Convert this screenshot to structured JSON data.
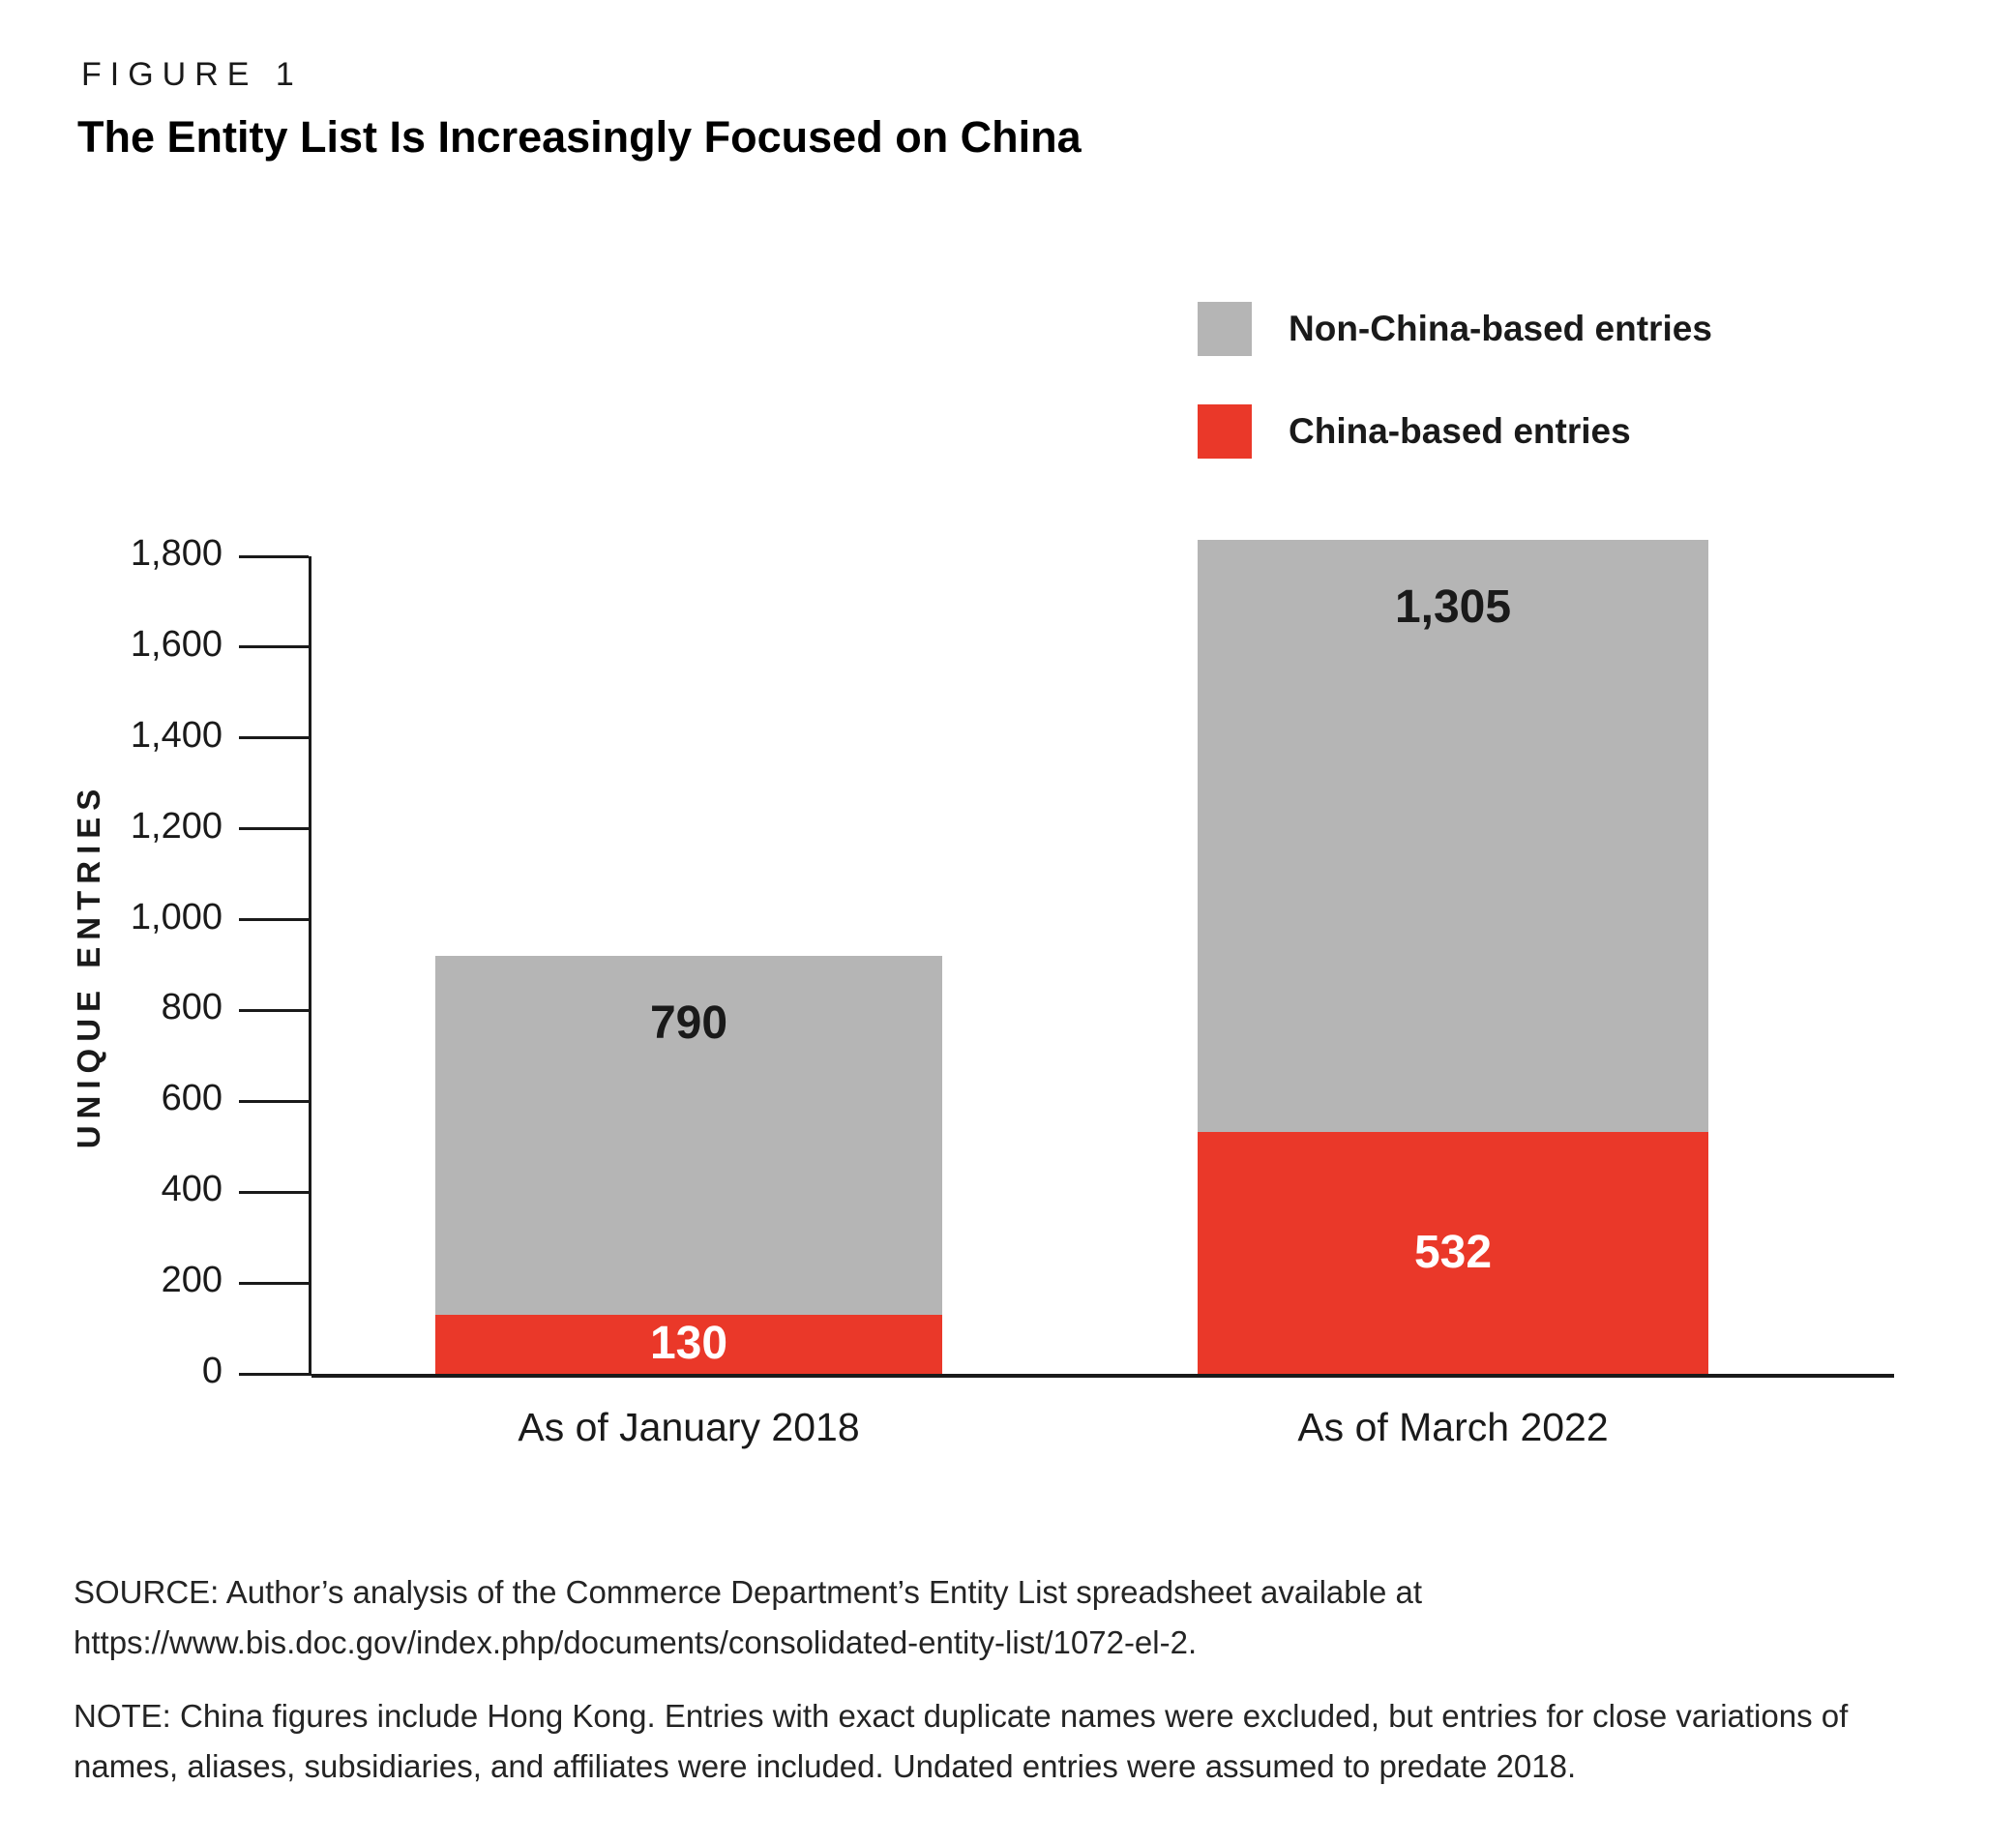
{
  "header": {
    "figure_label": "FIGURE 1",
    "title": "The Entity List Is Increasingly Focused on China"
  },
  "chart_data": {
    "type": "bar",
    "stacked": true,
    "title": "The Entity List Is Increasingly Focused on China",
    "categories": [
      "As of January 2018",
      "As of March 2022"
    ],
    "series": [
      {
        "name": "China-based entries",
        "color": "#ea3829",
        "label_color": "#ffffff",
        "label_placement": "center",
        "values": [
          130,
          532
        ],
        "labels": [
          "130",
          "532"
        ]
      },
      {
        "name": "Non-China-based entries",
        "color": "#b5b5b5",
        "label_color": "#1a1a1a",
        "label_placement": "top",
        "values": [
          790,
          1305
        ],
        "labels": [
          "790",
          "1,305"
        ]
      }
    ],
    "totals": [
      920,
      1837
    ],
    "ylabel": "UNIQUE ENTRIES",
    "xlabel": "",
    "ylim": [
      0,
      1800
    ],
    "yticks": [
      {
        "value": 0,
        "label": "0"
      },
      {
        "value": 200,
        "label": "200"
      },
      {
        "value": 400,
        "label": "400"
      },
      {
        "value": 600,
        "label": "600"
      },
      {
        "value": 800,
        "label": "800"
      },
      {
        "value": 1000,
        "label": "1,000"
      },
      {
        "value": 1200,
        "label": "1,200"
      },
      {
        "value": 1400,
        "label": "1,400"
      },
      {
        "value": 1600,
        "label": "1,600"
      },
      {
        "value": 1800,
        "label": "1,800"
      }
    ],
    "grid": false,
    "legend": {
      "position": "top-right",
      "items": [
        {
          "label": "Non-China-based entries",
          "color": "#b5b5b5"
        },
        {
          "label": "China-based entries",
          "color": "#ea3829"
        }
      ]
    }
  },
  "footer": {
    "source_line1": "SOURCE: Author’s analysis of the Commerce Department’s Entity List spreadsheet available at",
    "source_line2": "https://www.bis.doc.gov/index.php/documents/consolidated-entity-list/1072-el-2.",
    "note": "NOTE: China figures include Hong Kong. Entries with exact duplicate names were excluded, but entries for close variations of names, aliases, subsidiaries, and affiliates were included. Undated entries were assumed to predate 2018."
  }
}
